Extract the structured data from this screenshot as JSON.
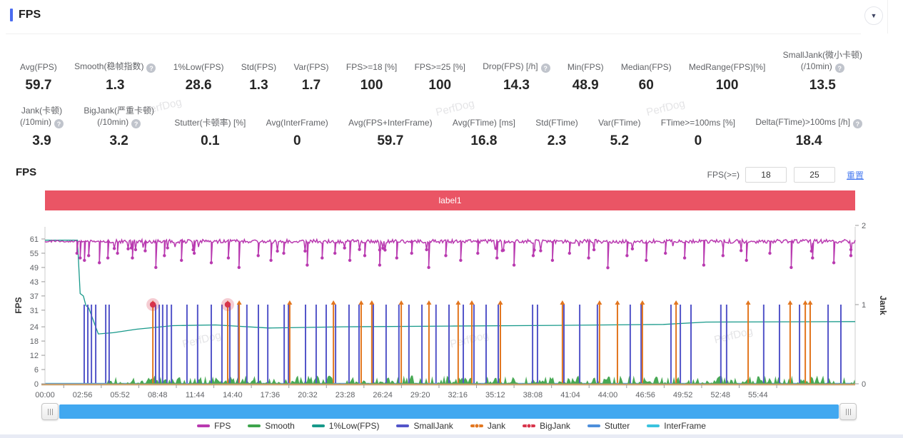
{
  "header": {
    "title": "FPS",
    "collapse_icon": "▼"
  },
  "watermark": {
    "text": "PerfDog"
  },
  "stats": {
    "row1": [
      {
        "label": "Avg(FPS)",
        "value": "59.7"
      },
      {
        "label": "Smooth(稳帧指数)",
        "help": true,
        "value": "1.3"
      },
      {
        "label": "1%Low(FPS)",
        "value": "28.6"
      },
      {
        "label": "Std(FPS)",
        "value": "1.3"
      },
      {
        "label": "Var(FPS)",
        "value": "1.7"
      },
      {
        "label": "FPS>=18 [%]",
        "value": "100"
      },
      {
        "label": "FPS>=25 [%]",
        "value": "100"
      },
      {
        "label": "Drop(FPS) [/h]",
        "help": true,
        "value": "14.3"
      },
      {
        "label": "Min(FPS)",
        "value": "48.9"
      },
      {
        "label": "Median(FPS)",
        "value": "60"
      },
      {
        "label": "MedRange(FPS)[%]",
        "value": "100"
      },
      {
        "label": "SmallJank(微小卡顿)",
        "label2": "(/10min)",
        "help": true,
        "value": "13.5"
      }
    ],
    "row2": [
      {
        "label": "Jank(卡顿)",
        "label2": "(/10min)",
        "help": true,
        "value": "3.9"
      },
      {
        "label": "BigJank(严重卡顿)",
        "label2": "(/10min)",
        "help": true,
        "value": "3.2"
      },
      {
        "label": "Stutter(卡顿率) [%]",
        "value": "0.1"
      },
      {
        "label": "Avg(InterFrame)",
        "value": "0"
      },
      {
        "label": "Avg(FPS+InterFrame)",
        "value": "59.7"
      },
      {
        "label": "Avg(FTime) [ms]",
        "value": "16.8"
      },
      {
        "label": "Std(FTime)",
        "value": "2.3"
      },
      {
        "label": "Var(FTime)",
        "value": "5.2"
      },
      {
        "label": "FTime>=100ms [%]",
        "value": "0"
      },
      {
        "label": "Delta(FTime)>100ms [/h]",
        "help": true,
        "value": "18.4"
      }
    ]
  },
  "chart_section": {
    "title": "FPS",
    "filter_label": "FPS(>=)",
    "inputs": [
      "18",
      "25"
    ],
    "reset_label": "重置",
    "banner": {
      "text": "label1",
      "color": "#ea5565"
    }
  },
  "chart_data": {
    "type": "line",
    "title": "FPS",
    "x_axis": {
      "ticks": [
        "00:00",
        "02:56",
        "05:52",
        "08:48",
        "11:44",
        "14:40",
        "17:36",
        "20:32",
        "23:28",
        "26:24",
        "29:20",
        "32:16",
        "35:12",
        "38:08",
        "41:04",
        "44:00",
        "46:56",
        "49:52",
        "52:48",
        "55:44"
      ],
      "interval_s": 176,
      "total_s": 3800
    },
    "y_left": {
      "label": "FPS",
      "ticks": [
        61,
        55,
        49,
        43,
        37,
        31,
        24,
        18,
        12,
        6,
        0
      ]
    },
    "y_right": {
      "label": "Jank",
      "ticks": [
        2,
        1,
        0
      ]
    },
    "legend": [
      "FPS",
      "Smooth",
      "1%Low(FPS)",
      "SmallJank",
      "Jank",
      "BigJank",
      "Stutter",
      "InterFrame"
    ],
    "series": [
      {
        "name": "FPS",
        "color": "#b93ab0",
        "type": "noisy-line",
        "baseline": [
          59.2,
          60.8
        ],
        "dips": [
          [
            150,
            55
          ],
          [
            165,
            53
          ],
          [
            185,
            52
          ],
          [
            205,
            54
          ],
          [
            255,
            51
          ],
          [
            295,
            53
          ],
          [
            340,
            55
          ],
          [
            410,
            53
          ],
          [
            470,
            56
          ],
          [
            520,
            49
          ],
          [
            560,
            54
          ],
          [
            640,
            52
          ],
          [
            700,
            55
          ],
          [
            780,
            51
          ],
          [
            860,
            53
          ],
          [
            910,
            49
          ],
          [
            1000,
            54
          ],
          [
            1060,
            52
          ],
          [
            1120,
            55
          ],
          [
            1230,
            50
          ],
          [
            1300,
            53
          ],
          [
            1360,
            55
          ],
          [
            1430,
            52
          ],
          [
            1500,
            54
          ],
          [
            1570,
            50
          ],
          [
            1650,
            53
          ],
          [
            1720,
            55
          ],
          [
            1800,
            49
          ],
          [
            1880,
            54
          ],
          [
            1950,
            52
          ],
          [
            2030,
            55
          ],
          [
            2120,
            53
          ],
          [
            2200,
            50
          ],
          [
            2290,
            54
          ],
          [
            2380,
            52
          ],
          [
            2460,
            55
          ],
          [
            2550,
            53
          ],
          [
            2640,
            48.9
          ],
          [
            2730,
            54
          ],
          [
            2820,
            52
          ],
          [
            2910,
            55
          ],
          [
            3000,
            53
          ],
          [
            3090,
            50
          ],
          [
            3180,
            54
          ],
          [
            3290,
            52
          ],
          [
            3400,
            55
          ],
          [
            3500,
            49
          ],
          [
            3600,
            53
          ],
          [
            3700,
            51
          ],
          [
            3780,
            54
          ]
        ]
      },
      {
        "name": "Smooth",
        "color": "#3ea44c",
        "type": "grass",
        "range": [
          0,
          3.5
        ],
        "start_s": 290
      },
      {
        "name": "1%Low(FPS)",
        "color": "#17998a",
        "type": "step",
        "points": [
          [
            0,
            60.5
          ],
          [
            152,
            60.5
          ],
          [
            156,
            54
          ],
          [
            165,
            38
          ],
          [
            180,
            37
          ],
          [
            192,
            33
          ],
          [
            205,
            32
          ],
          [
            250,
            21
          ],
          [
            320,
            21.5
          ],
          [
            430,
            23
          ],
          [
            600,
            24.5
          ],
          [
            800,
            24.8
          ],
          [
            1050,
            23.5
          ],
          [
            1400,
            24
          ],
          [
            1900,
            24.3
          ],
          [
            2400,
            24.6
          ],
          [
            2900,
            25
          ],
          [
            3100,
            26
          ],
          [
            3800,
            26.2
          ]
        ]
      },
      {
        "name": "SmallJank",
        "color": "#5355c9",
        "type": "spikes",
        "height_jank": 1,
        "times": [
          184,
          201,
          218,
          238,
          285,
          301,
          519,
          536,
          552,
          572,
          593,
          666,
          716,
          780,
          830,
          867,
          907,
          947,
          1001,
          1045,
          1122,
          1142,
          1222,
          1272,
          1319,
          1363,
          1426,
          1473,
          1540,
          1600,
          1660,
          1707,
          1768,
          1834,
          1895,
          1962,
          2012,
          2069,
          2126,
          2287,
          2310,
          2434,
          2508,
          2591,
          2745,
          2796,
          2936,
          2980,
          3030,
          3170,
          3197,
          3371,
          3445,
          3539,
          3673,
          3733
        ]
      },
      {
        "name": "Jank",
        "color": "#e2761f",
        "type": "spikes-marker",
        "height_jank": 1,
        "times": [
          506,
          857,
          911,
          1148,
          1353,
          1483,
          1533,
          1671,
          1801,
          1938,
          2002,
          2136,
          2427,
          2601,
          2685,
          2802,
          2960,
          3298,
          3495,
          3566,
          3589
        ]
      },
      {
        "name": "BigJank",
        "color": "#d8344b",
        "type": "event-dots",
        "height_jank": 1,
        "times": [
          506,
          857
        ]
      },
      {
        "name": "Stutter",
        "color": "#4e8fdb",
        "type": "flat",
        "value": 0
      },
      {
        "name": "InterFrame",
        "color": "#3ac3de",
        "type": "flat",
        "value": 0
      }
    ]
  }
}
